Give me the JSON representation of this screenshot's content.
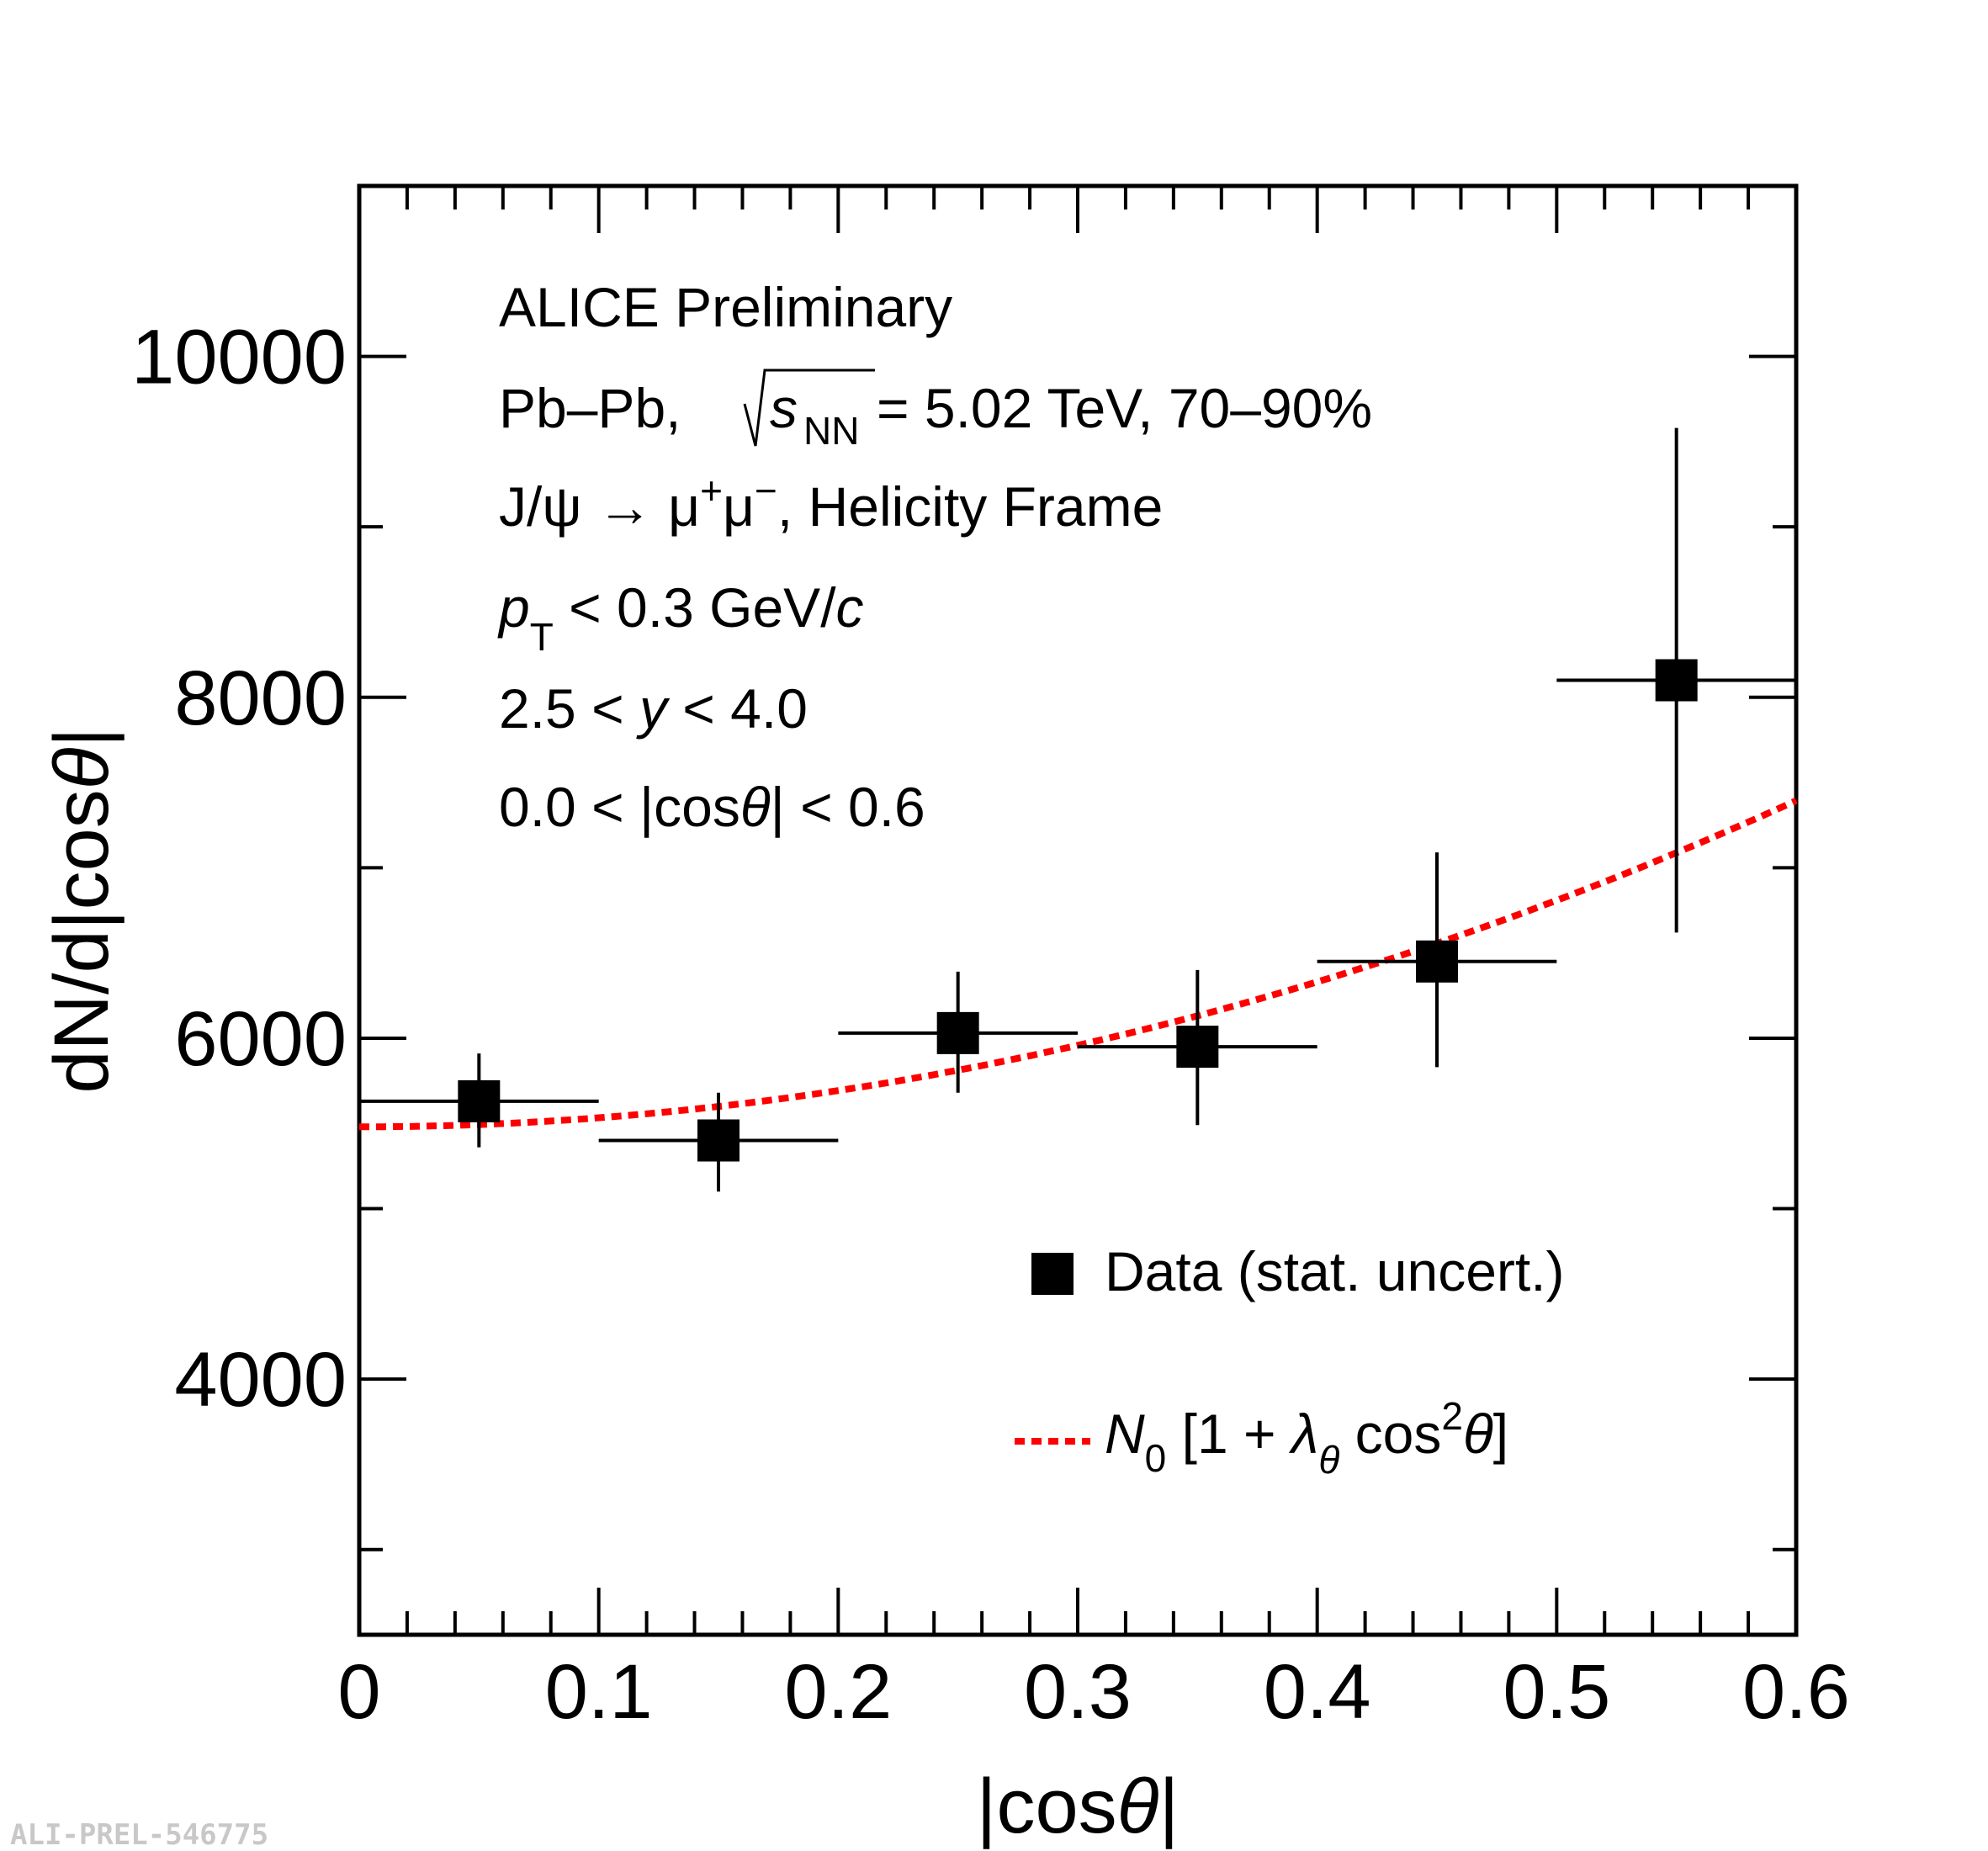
{
  "chart_data": {
    "type": "scatter",
    "title": "",
    "xlabel": "|cosθ|",
    "ylabel": "dN/d|cosθ|",
    "xlim": [
      0,
      0.6
    ],
    "ylim": [
      2500,
      11000
    ],
    "x_ticks": [
      0,
      0.1,
      0.2,
      0.3,
      0.4,
      0.5,
      0.6
    ],
    "x_tick_labels": [
      "0",
      "0.1",
      "0.2",
      "0.3",
      "0.4",
      "0.5",
      "0.6"
    ],
    "y_ticks": [
      4000,
      6000,
      8000,
      10000
    ],
    "y_tick_labels": [
      "4000",
      "6000",
      "8000",
      "10000"
    ],
    "series": [
      {
        "name": "Data (stat. uncert.)",
        "kind": "points",
        "x": [
          0.05,
          0.15,
          0.25,
          0.35,
          0.45,
          0.55
        ],
        "x_err": [
          0.05,
          0.05,
          0.05,
          0.05,
          0.05,
          0.05
        ],
        "y": [
          5630,
          5400,
          6030,
          5950,
          6450,
          8100
        ],
        "y_err_low": [
          270,
          300,
          350,
          460,
          620,
          1480
        ],
        "y_err_high": [
          280,
          280,
          360,
          450,
          640,
          1480
        ],
        "color": "#000000"
      },
      {
        "name": "N0 [1 + λθ cos²θ]",
        "kind": "fit",
        "function": "N0*(1+lambda*x^2)",
        "N0": 5480,
        "lambda": 0.97,
        "color": "#ff0000",
        "style": "dashed"
      }
    ],
    "annotations": [
      "ALICE Preliminary",
      "Pb–Pb, √sNN = 5.02 TeV, 70–90%",
      "J/ψ → μ+μ−, Helicity Frame",
      "pT < 0.3 GeV/c",
      "2.5 < y < 4.0",
      "0.0 < |cosθ| < 0.6"
    ],
    "legend": [
      "Data (stat. uncert.)",
      "N0 [1 + λθ cos²θ]"
    ],
    "legend_position": "lower-right",
    "grid": false
  },
  "text": {
    "ylabel_main": "dN/d|cos",
    "ylabel_theta": "θ",
    "ylabel_end": "|",
    "xlabel_main": "|cos",
    "xlabel_theta": "θ",
    "xlabel_end": "|",
    "info1": "ALICE Preliminary",
    "info2_a": "Pb–Pb, ",
    "info2_s": "s",
    "info2_sub": "NN",
    "info2_b": " = 5.02 TeV, 70–90%",
    "info3_a": "J/",
    "info3_psi": "ψ",
    "info3_b": " → ",
    "info3_mu1": "μ",
    "info3_plus": "+",
    "info3_mu2": "μ",
    "info3_minus": "−",
    "info3_c": ", Helicity Frame",
    "info4_p": "p",
    "info4_sub": "T",
    "info4_b": " < 0.3 GeV/",
    "info4_c": "c",
    "info5_a": "2.5 < ",
    "info5_y": "y",
    "info5_b": " < 4.0",
    "info6_a": "0.0 < |cos",
    "info6_theta": "θ",
    "info6_b": "| < 0.6",
    "legend_data": "Data (stat. uncert.)",
    "legend_fit_N": "N",
    "legend_fit_N_sub": "0",
    "legend_fit_a": " [1 + ",
    "legend_fit_lambda": "λ",
    "legend_fit_lambda_sub": "θ",
    "legend_fit_b": " cos",
    "legend_fit_sup": "2",
    "legend_fit_theta": "θ",
    "legend_fit_c": "]",
    "watermark": "ALI-PREL-546775"
  }
}
